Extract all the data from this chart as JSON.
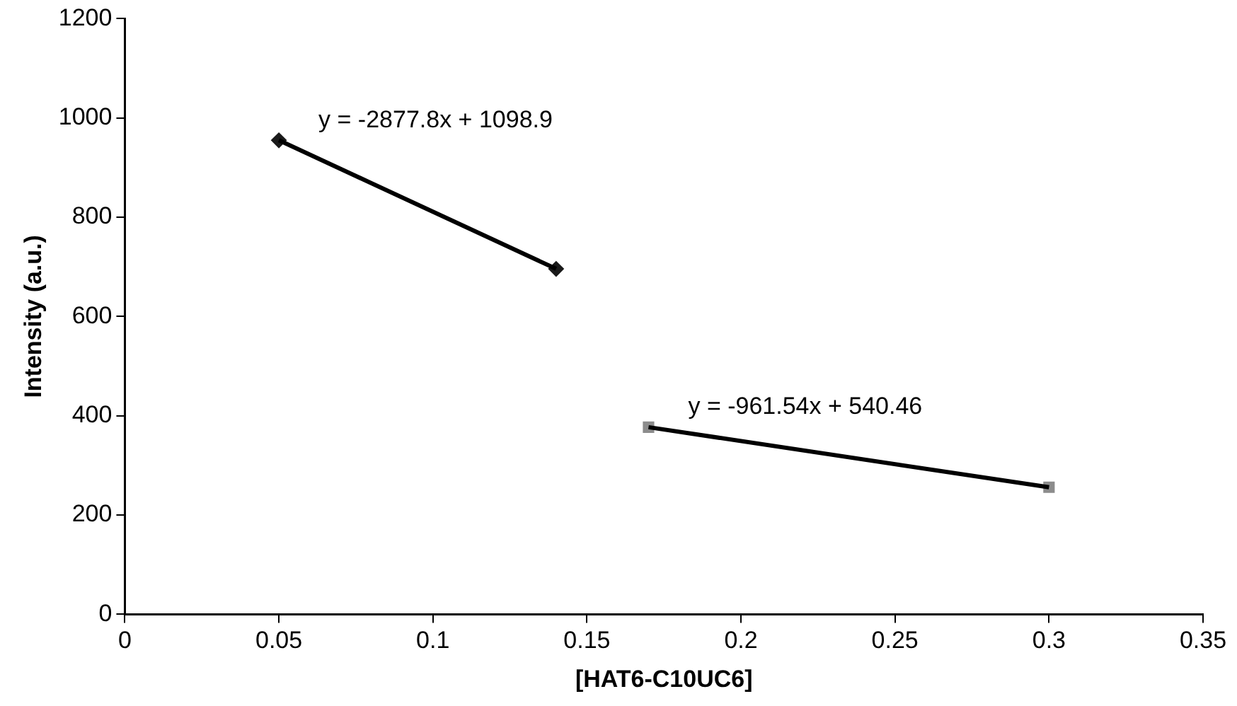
{
  "chart_data": {
    "type": "scatter",
    "xlabel": "[HAT6-C10UC6]",
    "ylabel": "Intensity (a.u.)",
    "xlim": [
      0,
      0.35
    ],
    "xticks": [
      0,
      0.05,
      0.1,
      0.15,
      0.2,
      0.25,
      0.3,
      0.35
    ],
    "ylim": [
      0,
      1200
    ],
    "yticks": [
      0,
      200,
      400,
      600,
      800,
      1000,
      1200
    ],
    "grid": false,
    "legend": false,
    "series": [
      {
        "type": "line",
        "color": "#000000",
        "x": [
          0.05,
          0.14
        ],
        "values": [
          955,
          696
        ],
        "marker": "none",
        "line_style": "solid"
      },
      {
        "type": "line",
        "color": "#000000",
        "x": [
          0.17,
          0.3
        ],
        "values": [
          377,
          256
        ],
        "marker": "none",
        "line_style": "solid"
      },
      {
        "color": "#1a1a1a",
        "x": [
          0.05,
          0.14
        ],
        "values": [
          955,
          696
        ],
        "marker": "diamond"
      },
      {
        "color": "#8c8c8c",
        "x": [
          0.17,
          0.3
        ],
        "values": [
          377,
          256
        ],
        "marker": "square"
      }
    ],
    "annotations": [
      "y = -2877.8x + 1098.9",
      "y = -961.54x + 540.46"
    ]
  }
}
